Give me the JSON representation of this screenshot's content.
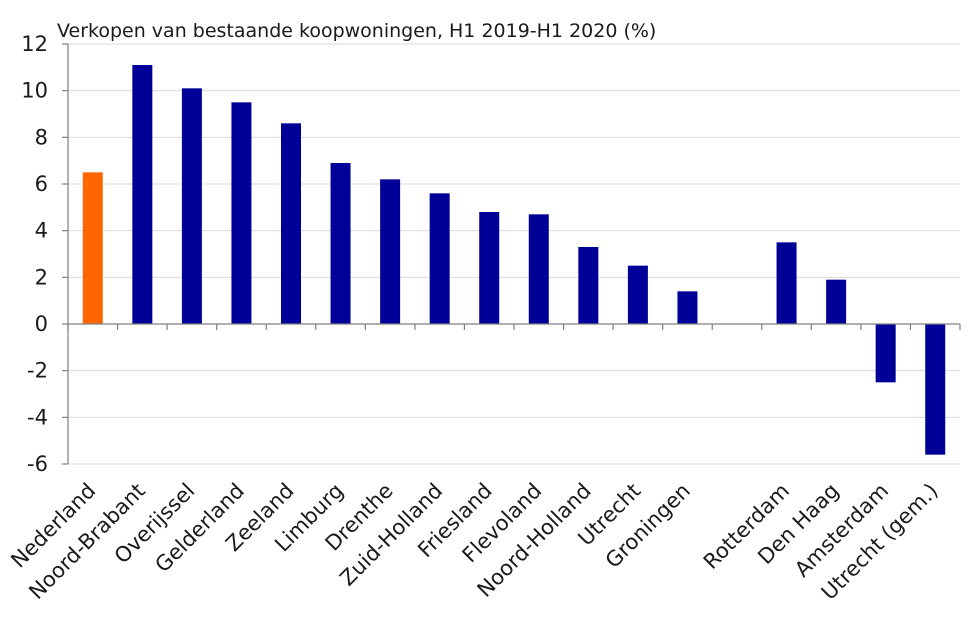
{
  "chart_data": {
    "type": "bar",
    "title": "Verkopen van bestaande koopwoningen, H1 2019-H1 2020 (%)",
    "xlabel": "",
    "ylabel": "",
    "ylim": [
      -6,
      12
    ],
    "yticks": [
      "12",
      "10",
      "8",
      "6",
      "4",
      "2",
      "0",
      "-2",
      "-4",
      "-6"
    ],
    "grid": true,
    "categories": [
      "Nederland",
      "Noord-Brabant",
      "Overijssel",
      "Gelderland",
      "Zeeland",
      "Limburg",
      "Drenthe",
      "Zuid-Holland",
      "Friesland",
      "Flevoland",
      "Noord-Holland",
      "Utrecht",
      "Groningen",
      "",
      "Rotterdam",
      "Den Haag",
      "Amsterdam",
      "Utrecht (gem.)"
    ],
    "values": [
      6.5,
      11.1,
      10.1,
      9.5,
      8.6,
      6.9,
      6.2,
      5.6,
      4.8,
      4.7,
      3.3,
      2.5,
      1.4,
      null,
      3.5,
      1.9,
      -2.5,
      -5.6
    ],
    "highlight_color": "#ff6600",
    "bar_color": "#000099",
    "highlight_index": 0
  }
}
